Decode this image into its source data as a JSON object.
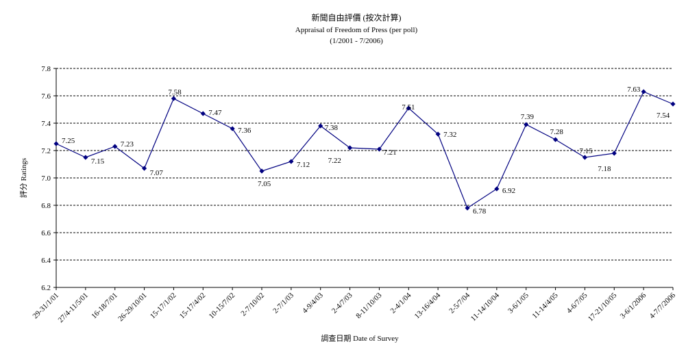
{
  "chart_data": {
    "type": "line",
    "title": "新聞自由評價 (按次計算)",
    "subtitle": "Appraisal of Freedom of Press (per poll)",
    "subtitle2": "(1/2001 - 7/2006)",
    "xlabel": "調查日期 Date of Survey",
    "ylabel": "評分 Ratings",
    "ylim": [
      6.2,
      7.8
    ],
    "yticks": [
      "6.2",
      "6.4",
      "6.6",
      "6.8",
      "7.0",
      "7.2",
      "7.4",
      "7.6",
      "7.8"
    ],
    "grid": true,
    "legend": "none",
    "color": "#000080",
    "categories": [
      "29-31/1/01",
      "27/4-11/5/01",
      "16-18/7/01",
      "26-29/10/01",
      "15-17/1/02",
      "15-17/4/02",
      "10-15/7/02",
      "2-7/10/02",
      "2-7/1/03",
      "4-9/4/03",
      "2-4/7/03",
      "8-11/10/03",
      "2-4/1/04",
      "13-16/4/04",
      "2-5/7/04",
      "11-14/10/04",
      "3-6/1/05",
      "11-14/4/05",
      "4-6/7/05",
      "17-21/10/05",
      "3-6/1/2006",
      "4-7/7/2006"
    ],
    "values": [
      7.25,
      7.15,
      7.23,
      7.07,
      7.58,
      7.47,
      7.36,
      7.05,
      7.12,
      7.38,
      7.22,
      7.21,
      7.51,
      7.32,
      6.78,
      6.92,
      7.39,
      7.28,
      7.15,
      7.18,
      7.63,
      7.54
    ],
    "value_labels": [
      "7.25",
      "7.15",
      "7.23",
      "7.07",
      "7.58",
      "7.47",
      "7.36",
      "7.05",
      "7.12",
      "7.38",
      "7.22",
      "7.21",
      "7.51",
      "7.32",
      "6.78",
      "6.92",
      "7.39",
      "7.28",
      "7.15",
      "7.18",
      "7.63",
      "7.54"
    ]
  }
}
